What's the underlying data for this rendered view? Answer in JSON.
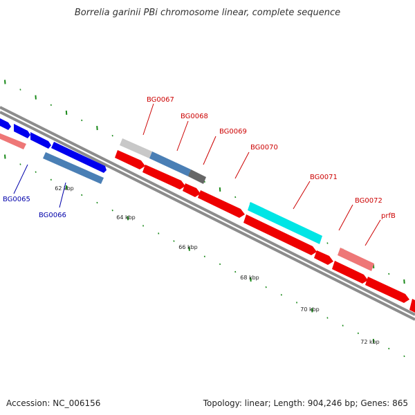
{
  "title": "Borrelia garinii PBi chromosome linear, complete sequence",
  "footer": {
    "accession": "Accession: NC_006156",
    "summary": "Topology: linear; Length: 904,246 bp; Genes: 865"
  },
  "scale_labels": [
    "62 kbp",
    "64 kbp",
    "66 kbp",
    "68 kbp",
    "70 kbp",
    "72 kbp"
  ],
  "colors": {
    "backbone": "#8c8c8c",
    "tick": "#1a8a1a",
    "label_red": "#cc0000",
    "label_blue": "#0000aa"
  },
  "genes": [
    {
      "label": "BG0065",
      "color": "#0000ee",
      "strand": "top"
    },
    {
      "label": "BG0066",
      "color": "#4a7fb5",
      "strand": "bottom"
    },
    {
      "label": "BG0067",
      "color": "#c8c8c8",
      "strand": "top"
    },
    {
      "label": "BG0068",
      "color": "#4a7fb5",
      "strand": "top"
    },
    {
      "label": "BG0069",
      "color": "#666666",
      "strand": "top"
    },
    {
      "label": "BG0070",
      "color": "#ee0000",
      "strand": "bottom"
    },
    {
      "label": "BG0071",
      "color": "#00e5e5",
      "strand": "top"
    },
    {
      "label": "BG0072",
      "color": "#ee0000",
      "strand": "bottom"
    },
    {
      "label": "prfB",
      "color": "#ee7777",
      "strand": "top"
    }
  ]
}
